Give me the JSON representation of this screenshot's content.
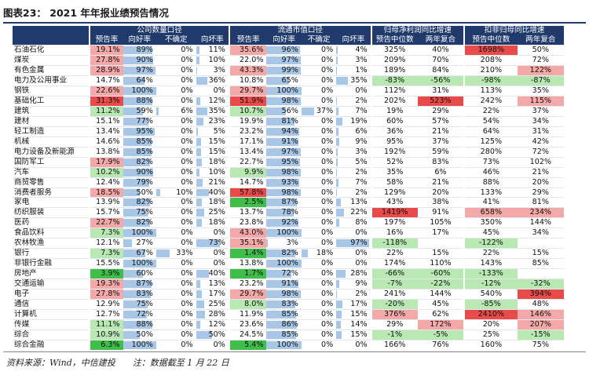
{
  "title": "图表23： 2021 年年报业绩预告情况",
  "footnote": "资料来源：Wind，中信建投　　注：数据截至 1 月 22 日",
  "colors": {
    "header_bg": "#1f3a6b",
    "bar": "#a8c6e6",
    "high": "#f4a9a8",
    "high_strong": "#e94b4b",
    "low": "#b9e8b3",
    "low_strong": "#3fbf4a"
  },
  "groups": [
    "公司数量口径",
    "流通市值口径",
    "归母净利润同比增速",
    "扣非归母同比增速"
  ],
  "columns": [
    "预告率",
    "向好率",
    "不确定",
    "向坏率",
    "预告率",
    "向好率",
    "不确定",
    "向坏率",
    "预告中位数",
    "两年复合",
    "预告中位数",
    "两年复合"
  ],
  "rows": [
    {
      "name": "石油石化",
      "c": [
        "19.1%",
        "89%",
        "0%",
        "11%",
        "35.6%",
        "96%",
        "0%",
        "4%",
        "325%",
        "40%",
        "1698%",
        "50%"
      ],
      "b": [
        0,
        89,
        0,
        11,
        0,
        96,
        0,
        4
      ],
      "s": [
        "hi",
        "",
        "",
        "",
        "hi",
        "",
        "",
        "",
        "",
        "",
        "hs",
        ""
      ]
    },
    {
      "name": "煤炭",
      "c": [
        "27.8%",
        "90%",
        "0%",
        "10%",
        "22.0%",
        "97%",
        "0%",
        "3%",
        "209%",
        "70%",
        "208%",
        "72%"
      ],
      "b": [
        0,
        90,
        0,
        10,
        0,
        97,
        0,
        3
      ],
      "s": [
        "hi",
        "",
        "",
        "",
        "",
        "",
        "",
        "",
        "",
        "",
        "",
        ""
      ]
    },
    {
      "name": "有色金属",
      "c": [
        "28.9%",
        "97%",
        "0%",
        "3%",
        "43.3%",
        "99%",
        "0%",
        "1%",
        "189%",
        "84%",
        "210%",
        "122%"
      ],
      "b": [
        0,
        97,
        0,
        3,
        0,
        99,
        0,
        1
      ],
      "s": [
        "hi",
        "",
        "",
        "",
        "hi",
        "",
        "",
        "",
        "",
        "",
        "",
        "hi"
      ]
    },
    {
      "name": "电力及公用事业",
      "c": [
        "14.7%",
        "64%",
        "0%",
        "36%",
        "10.8%",
        "65%",
        "0%",
        "35%",
        "-83%",
        "-56%",
        "-98%",
        "-87%"
      ],
      "b": [
        0,
        64,
        0,
        36,
        0,
        65,
        0,
        35
      ],
      "s": [
        "",
        "",
        "",
        "",
        "",
        "",
        "",
        "",
        "lo",
        "lo",
        "lo",
        "lo"
      ]
    },
    {
      "name": "钢铁",
      "c": [
        "22.6%",
        "100%",
        "0%",
        "0%",
        "29.7%",
        "100%",
        "0%",
        "0%",
        "112%",
        "31%",
        "113%",
        "35%"
      ],
      "b": [
        0,
        100,
        0,
        0,
        0,
        100,
        0,
        0
      ],
      "s": [
        "hi",
        "",
        "",
        "",
        "hi",
        "",
        "",
        "",
        "",
        "",
        "",
        ""
      ]
    },
    {
      "name": "基础化工",
      "c": [
        "31.3%",
        "88%",
        "0%",
        "12%",
        "51.9%",
        "98%",
        "0%",
        "2%",
        "202%",
        "523%",
        "242%",
        "115%"
      ],
      "b": [
        0,
        88,
        0,
        12,
        0,
        98,
        0,
        2
      ],
      "s": [
        "hs",
        "",
        "",
        "",
        "hs",
        "",
        "",
        "",
        "",
        "hs",
        "",
        "hi"
      ]
    },
    {
      "name": "建筑",
      "c": [
        "11.2%",
        "59%",
        "6%",
        "35%",
        "10.7%",
        "56%",
        "37%",
        "7%",
        "19%",
        "29%",
        "22%",
        "37%"
      ],
      "b": [
        0,
        59,
        6,
        35,
        0,
        56,
        37,
        7
      ],
      "s": [
        "lo",
        "",
        "",
        "",
        "lo",
        "",
        "",
        "",
        "",
        "",
        "",
        ""
      ]
    },
    {
      "name": "建材",
      "c": [
        "15.1%",
        "77%",
        "0%",
        "23%",
        "19.9%",
        "81%",
        "0%",
        "19%",
        "60%",
        "57%",
        "54%",
        "34%"
      ],
      "b": [
        0,
        77,
        0,
        23,
        0,
        81,
        0,
        19
      ],
      "s": [
        "",
        "",
        "",
        "",
        "",
        "",
        "",
        "",
        "",
        "",
        "",
        ""
      ]
    },
    {
      "name": "轻工制造",
      "c": [
        "13.4%",
        "95%",
        "0%",
        "5%",
        "23.2%",
        "94%",
        "0%",
        "6%",
        "36%",
        "21%",
        "64%",
        "31%"
      ],
      "b": [
        0,
        95,
        0,
        5,
        0,
        94,
        0,
        6
      ],
      "s": [
        "",
        "",
        "",
        "",
        "",
        "",
        "",
        "",
        "",
        "",
        "",
        ""
      ]
    },
    {
      "name": "机械",
      "c": [
        "14.6%",
        "85%",
        "0%",
        "15%",
        "17.1%",
        "91%",
        "0%",
        "9%",
        "95%",
        "37%",
        "125%",
        "42%"
      ],
      "b": [
        0,
        85,
        0,
        15,
        0,
        91,
        0,
        9
      ],
      "s": [
        "",
        "",
        "",
        "",
        "",
        "",
        "",
        "",
        "",
        "",
        "",
        ""
      ]
    },
    {
      "name": "电力设备及新能源",
      "c": [
        "13.8%",
        "85%",
        "0%",
        "15%",
        "13.4%",
        "97%",
        "0%",
        "3%",
        "192%",
        "59%",
        "280%",
        "72%"
      ],
      "b": [
        0,
        85,
        0,
        15,
        0,
        97,
        0,
        3
      ],
      "s": [
        "",
        "",
        "",
        "",
        "",
        "",
        "",
        "",
        "",
        "",
        "",
        ""
      ]
    },
    {
      "name": "国防军工",
      "c": [
        "17.9%",
        "82%",
        "0%",
        "18%",
        "22.7%",
        "95%",
        "0%",
        "5%",
        "52%",
        "83%",
        "73%",
        "102%"
      ],
      "b": [
        0,
        82,
        0,
        18,
        0,
        95,
        0,
        5
      ],
      "s": [
        "hi",
        "",
        "",
        "",
        "",
        "",
        "",
        "",
        "",
        "",
        "",
        ""
      ]
    },
    {
      "name": "汽车",
      "c": [
        "10.2%",
        "90%",
        "0%",
        "10%",
        "9.9%",
        "98%",
        "0%",
        "2%",
        "35%",
        "6%",
        "46%",
        "21%"
      ],
      "b": [
        0,
        90,
        0,
        10,
        0,
        98,
        0,
        2
      ],
      "s": [
        "lo",
        "",
        "",
        "",
        "lo",
        "",
        "",
        "",
        "",
        "",
        "",
        ""
      ]
    },
    {
      "name": "商贸零售",
      "c": [
        "12.4%",
        "79%",
        "0%",
        "21%",
        "14.7%",
        "93%",
        "0%",
        "7%",
        "58%",
        "21%",
        "88%",
        "20%"
      ],
      "b": [
        0,
        79,
        0,
        21,
        0,
        93,
        0,
        7
      ],
      "s": [
        "",
        "",
        "",
        "",
        "",
        "",
        "",
        "",
        "",
        "",
        "",
        ""
      ]
    },
    {
      "name": "消费者服务",
      "c": [
        "18.5%",
        "50%",
        "10%",
        "40%",
        "57.8%",
        "98%",
        "0%",
        "2%",
        "129%",
        "20%",
        "133%",
        "29%"
      ],
      "b": [
        0,
        50,
        10,
        40,
        0,
        98,
        0,
        2
      ],
      "s": [
        "hi",
        "",
        "",
        "",
        "hs",
        "",
        "",
        "",
        "",
        "",
        "",
        ""
      ]
    },
    {
      "name": "家电",
      "c": [
        "13.9%",
        "82%",
        "0%",
        "18%",
        "2.5%",
        "87%",
        "0%",
        "13%",
        "43%",
        "38%",
        "41%",
        "81%"
      ],
      "b": [
        0,
        82,
        0,
        18,
        0,
        87,
        0,
        13
      ],
      "s": [
        "",
        "",
        "",
        "",
        "ls",
        "",
        "",
        "",
        "",
        "",
        "",
        ""
      ]
    },
    {
      "name": "纺织服装",
      "c": [
        "15.7%",
        "75%",
        "0%",
        "25%",
        "13.7%",
        "78%",
        "0%",
        "22%",
        "1419%",
        "91%",
        "658%",
        "234%"
      ],
      "b": [
        0,
        75,
        0,
        25,
        0,
        78,
        0,
        22
      ],
      "s": [
        "",
        "",
        "",
        "",
        "",
        "",
        "",
        "",
        "hs",
        "",
        "hi",
        "hi"
      ]
    },
    {
      "name": "医药",
      "c": [
        "22.7%",
        "82%",
        "0%",
        "18%",
        "23.8%",
        "92%",
        "0%",
        "8%",
        "197%",
        "105%",
        "350%",
        "144%"
      ],
      "b": [
        0,
        82,
        0,
        18,
        0,
        92,
        0,
        8
      ],
      "s": [
        "hi",
        "",
        "",
        "",
        "",
        "",
        "",
        "",
        "",
        "",
        "",
        ""
      ]
    },
    {
      "name": "食品饮料",
      "c": [
        "7.3%",
        "100%",
        "0%",
        "0%",
        "43.0%",
        "100%",
        "0%",
        "0%",
        "16%",
        "17%",
        "45%",
        "34%"
      ],
      "b": [
        0,
        100,
        0,
        0,
        0,
        100,
        0,
        0
      ],
      "s": [
        "lo",
        "",
        "",
        "",
        "hi",
        "",
        "",
        "",
        "",
        "",
        "",
        ""
      ]
    },
    {
      "name": "农林牧渔",
      "c": [
        "12.1%",
        "27%",
        "0%",
        "73%",
        "35.1%",
        "3%",
        "0%",
        "97%",
        "-118%",
        "",
        "-122%",
        ""
      ],
      "b": [
        0,
        27,
        0,
        73,
        0,
        3,
        0,
        97
      ],
      "s": [
        "",
        "",
        "",
        "",
        "hi",
        "",
        "",
        "",
        "lo",
        "",
        "lo",
        ""
      ]
    },
    {
      "name": "银行",
      "c": [
        "7.3%",
        "67%",
        "33%",
        "0%",
        "1.4%",
        "82%",
        "18%",
        "0%",
        "22%",
        "15%",
        "22%",
        "15%"
      ],
      "b": [
        0,
        67,
        33,
        0,
        0,
        82,
        18,
        0
      ],
      "s": [
        "lo",
        "",
        "",
        "",
        "ls",
        "",
        "",
        "",
        "",
        "",
        "",
        ""
      ]
    },
    {
      "name": "非银行金融",
      "c": [
        "15.5%",
        "100%",
        "0%",
        "0%",
        "13.8%",
        "100%",
        "0%",
        "0%",
        "174%",
        "110%",
        "143%",
        "85%"
      ],
      "b": [
        0,
        100,
        0,
        0,
        0,
        100,
        0,
        0
      ],
      "s": [
        "",
        "",
        "",
        "",
        "",
        "",
        "",
        "",
        "",
        "",
        "",
        ""
      ]
    },
    {
      "name": "房地产",
      "c": [
        "3.9%",
        "60%",
        "0%",
        "40%",
        "1.7%",
        "72%",
        "0%",
        "28%",
        "-66%",
        "-60%",
        "-133%",
        ""
      ],
      "b": [
        0,
        60,
        0,
        40,
        0,
        72,
        0,
        28
      ],
      "s": [
        "ls",
        "",
        "",
        "",
        "ls",
        "",
        "",
        "",
        "lo",
        "lo",
        "lo",
        ""
      ]
    },
    {
      "name": "交通运输",
      "c": [
        "19.3%",
        "87%",
        "0%",
        "13%",
        "23.2%",
        "91%",
        "0%",
        "9%",
        "-7%",
        "-22%",
        "-12%",
        "-32%"
      ],
      "b": [
        0,
        87,
        0,
        13,
        0,
        91,
        0,
        9
      ],
      "s": [
        "hi",
        "",
        "",
        "",
        "",
        "",
        "",
        "",
        "lo",
        "lo",
        "lo",
        "lo"
      ]
    },
    {
      "name": "电子",
      "c": [
        "27.8%",
        "83%",
        "0%",
        "17%",
        "29.7%",
        "98%",
        "0%",
        "2%",
        "241%",
        "144%",
        "540%",
        "394%"
      ],
      "b": [
        0,
        83,
        0,
        17,
        0,
        98,
        0,
        2
      ],
      "s": [
        "hi",
        "",
        "",
        "",
        "hi",
        "",
        "",
        "",
        "",
        "",
        "",
        "hs"
      ]
    },
    {
      "name": "通信",
      "c": [
        "12.9%",
        "75%",
        "0%",
        "25%",
        "8.0%",
        "83%",
        "0%",
        "17%",
        "-20%",
        "45%",
        "-85%",
        "48%"
      ],
      "b": [
        0,
        75,
        0,
        25,
        0,
        83,
        0,
        17
      ],
      "s": [
        "",
        "",
        "",
        "",
        "lo",
        "",
        "",
        "",
        "lo",
        "",
        "lo",
        ""
      ]
    },
    {
      "name": "计算机",
      "c": [
        "12.7%",
        "72%",
        "0%",
        "28%",
        "11.9%",
        "85%",
        "0%",
        "15%",
        "376%",
        "62%",
        "2410%",
        "146%"
      ],
      "b": [
        0,
        72,
        0,
        28,
        0,
        85,
        0,
        15
      ],
      "s": [
        "",
        "",
        "",
        "",
        "",
        "",
        "",
        "",
        "hi",
        "",
        "hs",
        "hi"
      ]
    },
    {
      "name": "传媒",
      "c": [
        "11.1%",
        "88%",
        "0%",
        "12%",
        "23.6%",
        "86%",
        "0%",
        "14%",
        "29%",
        "172%",
        "20%",
        "207%"
      ],
      "b": [
        0,
        88,
        0,
        12,
        0,
        86,
        0,
        14
      ],
      "s": [
        "lo",
        "",
        "",
        "",
        "",
        "",
        "",
        "",
        "",
        "hi",
        "",
        "hi"
      ]
    },
    {
      "name": "综合",
      "c": [
        "10.9%",
        "50%",
        "0%",
        "50%",
        "24.5%",
        "85%",
        "0%",
        "15%",
        "-1%",
        "-5%",
        "25%",
        "-15%"
      ],
      "b": [
        0,
        50,
        0,
        50,
        0,
        85,
        0,
        15
      ],
      "s": [
        "lo",
        "",
        "",
        "",
        "",
        "",
        "",
        "",
        "lo",
        "lo",
        "",
        "lo"
      ]
    },
    {
      "name": "综合金融",
      "c": [
        "6.3%",
        "100%",
        "0%",
        "0%",
        "5.4%",
        "100%",
        "0%",
        "0%",
        "166%",
        "76%",
        "160%",
        "75%"
      ],
      "b": [
        0,
        100,
        0,
        0,
        0,
        100,
        0,
        0
      ],
      "s": [
        "ls",
        "",
        "",
        "",
        "ls",
        "",
        "",
        "",
        "",
        "",
        "",
        ""
      ]
    }
  ]
}
